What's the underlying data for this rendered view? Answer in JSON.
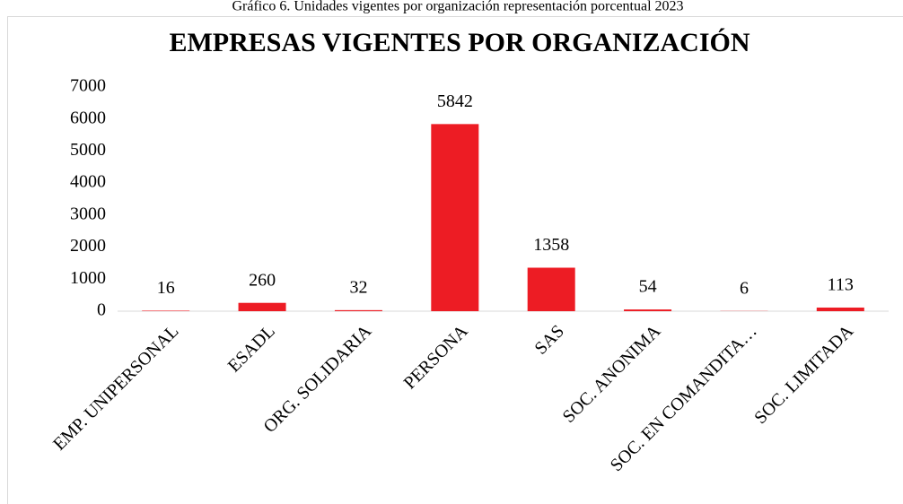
{
  "caption": "Gráfico 6. Unidades vigentes por organización representación porcentual 2023",
  "chart_data": {
    "type": "bar",
    "title": "EMPRESAS VIGENTES POR ORGANIZACIÓN",
    "categories": [
      "EMP. UNIPERSONAL",
      "ESADL",
      "ORG. SOLIDARIA",
      "PERSONA",
      "SAS",
      "SOC. ANONIMA",
      "SOC. EN COMANDITA…",
      "SOC. LIMITADA"
    ],
    "values": [
      16,
      260,
      32,
      5842,
      1358,
      54,
      6,
      113
    ],
    "color": "#ed1c24",
    "ylim": [
      0,
      7000
    ],
    "yticks": [
      0,
      1000,
      2000,
      3000,
      4000,
      5000,
      6000,
      7000
    ],
    "grid": false,
    "data_labels": true
  }
}
